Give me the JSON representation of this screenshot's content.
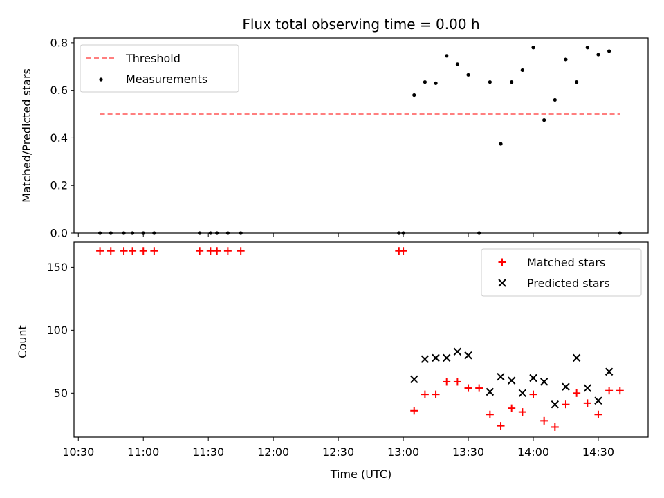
{
  "chart_data": {
    "title": "Flux total observing time = 0.00 h",
    "xlabel": "Time (UTC)",
    "xlim": [
      "10:28",
      "14:53"
    ],
    "xticks": [
      "10:30",
      "11:00",
      "11:30",
      "12:00",
      "12:30",
      "13:00",
      "13:30",
      "14:00",
      "14:30"
    ],
    "colors": {
      "threshold": "#ff7f7f",
      "measurements": "#000000",
      "matched": "#ff0000",
      "predicted": "#000000"
    },
    "panels": [
      {
        "type": "scatter",
        "ylabel": "Matched/Predicted stars",
        "ylim": [
          0,
          0.82
        ],
        "yticks": [
          "0.0",
          "0.2",
          "0.4",
          "0.6",
          "0.8"
        ],
        "legend": {
          "placement": "top-left",
          "entries": [
            "Threshold",
            "Measurements"
          ]
        },
        "threshold": {
          "name": "Threshold",
          "y": 0.5,
          "x": [
            "10:40",
            "14:40"
          ],
          "style": "dashed"
        },
        "measurements": {
          "name": "Measurements",
          "x": [
            "10:40",
            "10:45",
            "10:51",
            "10:55",
            "11:00",
            "11:05",
            "11:26",
            "11:31",
            "11:34",
            "11:39",
            "11:45",
            "12:58",
            "13:00",
            "13:05",
            "13:10",
            "13:15",
            "13:20",
            "13:25",
            "13:30",
            "13:35",
            "13:40",
            "13:45",
            "13:50",
            "13:55",
            "14:00",
            "14:05",
            "14:10",
            "14:15",
            "14:20",
            "14:25",
            "14:30",
            "14:35",
            "14:40"
          ],
          "y": [
            0,
            0,
            0,
            0,
            0,
            0,
            0,
            0,
            0,
            0,
            0,
            0,
            0,
            0.58,
            0.635,
            0.63,
            0.745,
            0.71,
            0.665,
            0,
            0.635,
            0.375,
            0.635,
            0.685,
            0.78,
            0.475,
            0.56,
            0.73,
            0.635,
            0.78,
            0.75,
            0.765,
            0
          ]
        }
      },
      {
        "type": "scatter",
        "ylabel": "Count",
        "ylim": [
          15,
          170
        ],
        "yticks": [
          "50",
          "100",
          "150"
        ],
        "legend": {
          "placement": "top-right",
          "entries": [
            "Matched stars",
            "Predicted stars"
          ]
        },
        "series": [
          {
            "name": "Matched stars",
            "marker": "plus",
            "x": [
              "10:40",
              "10:45",
              "10:51",
              "10:55",
              "11:00",
              "11:05",
              "11:26",
              "11:31",
              "11:34",
              "11:39",
              "11:45",
              "12:58",
              "13:00",
              "13:05",
              "13:10",
              "13:15",
              "13:20",
              "13:25",
              "13:30",
              "13:35",
              "13:40",
              "13:45",
              "13:50",
              "13:55",
              "14:00",
              "14:05",
              "14:10",
              "14:15",
              "14:20",
              "14:25",
              "14:30",
              "14:35",
              "14:40"
            ],
            "y": [
              163,
              163,
              163,
              163,
              163,
              163,
              163,
              163,
              163,
              163,
              163,
              163,
              163,
              36,
              49,
              49,
              59,
              59,
              54,
              54,
              33,
              24,
              38,
              35,
              49,
              28,
              23,
              41,
              50,
              42,
              33,
              52,
              52
            ]
          },
          {
            "name": "Predicted stars",
            "marker": "x",
            "x": [
              "13:05",
              "13:10",
              "13:15",
              "13:20",
              "13:25",
              "13:30",
              "13:40",
              "13:45",
              "13:50",
              "13:55",
              "14:00",
              "14:05",
              "14:10",
              "14:15",
              "14:20",
              "14:25",
              "14:30",
              "14:35"
            ],
            "y": [
              61,
              77,
              78,
              78,
              83,
              80,
              51,
              63,
              60,
              50,
              62,
              59,
              41,
              55,
              78,
              54,
              44,
              67
            ]
          }
        ]
      }
    ]
  }
}
